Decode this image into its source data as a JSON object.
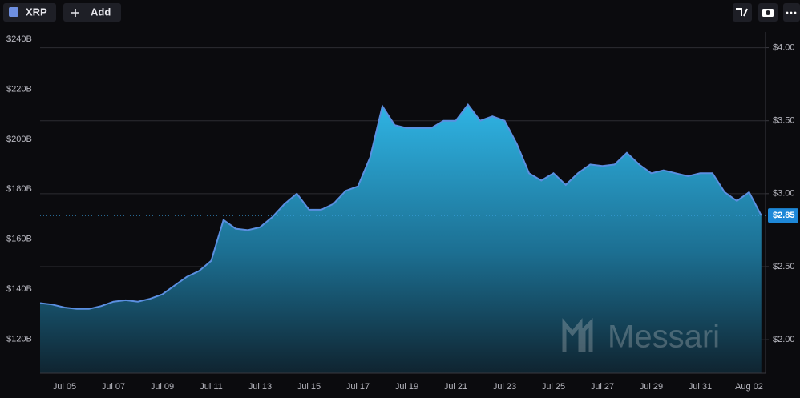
{
  "toolbar": {
    "add": "Add"
  },
  "watermark": "Messari",
  "chart_data": {
    "type": "area",
    "categories": [
      null,
      null,
      "Jul 05",
      null,
      null,
      null,
      "Jul 07",
      null,
      null,
      null,
      "Jul 09",
      null,
      null,
      null,
      "Jul 11",
      null,
      null,
      null,
      "Jul 13",
      null,
      null,
      null,
      "Jul 15",
      null,
      null,
      null,
      "Jul 17",
      null,
      null,
      null,
      "Jul 19",
      null,
      null,
      null,
      "Jul 21",
      null,
      null,
      null,
      "Jul 23",
      null,
      null,
      null,
      "Jul 25",
      null,
      null,
      null,
      "Jul 27",
      null,
      null,
      null,
      "Jul 29",
      null,
      null,
      null,
      "Jul 31",
      null,
      null,
      null,
      "Aug 02",
      null
    ],
    "series": [
      {
        "name": "XRP",
        "color": "#5b8fe0",
        "axis": "y2",
        "values": [
          2.25,
          2.24,
          2.22,
          2.21,
          2.21,
          2.23,
          2.26,
          2.27,
          2.26,
          2.28,
          2.31,
          2.37,
          2.43,
          2.47,
          2.54,
          2.82,
          2.76,
          2.75,
          2.77,
          2.84,
          2.93,
          3.0,
          2.89,
          2.89,
          2.93,
          3.02,
          3.05,
          3.25,
          3.6,
          3.47,
          3.45,
          3.45,
          3.45,
          3.5,
          3.5,
          3.61,
          3.5,
          3.53,
          3.5,
          3.34,
          3.14,
          3.09,
          3.14,
          3.06,
          3.14,
          3.2,
          3.19,
          3.2,
          3.28,
          3.2,
          3.14,
          3.16,
          3.14,
          3.12,
          3.14,
          3.14,
          3.01,
          2.95,
          3.01,
          2.85
        ]
      }
    ],
    "ylim": [
      106.4,
      241.3
    ],
    "yticks": [
      {
        "value": 120,
        "label": "$120B"
      },
      {
        "value": 140,
        "label": "$140B"
      },
      {
        "value": 160,
        "label": "$160B"
      },
      {
        "value": 180,
        "label": "$180B"
      },
      {
        "value": 200,
        "label": "$200B"
      },
      {
        "value": 220,
        "label": "$220B"
      },
      {
        "value": 240,
        "label": "$240B"
      }
    ],
    "y2lim": [
      1.77,
      4.08
    ],
    "y2ticks": [
      {
        "value": 2,
        "label": "$2.00"
      },
      {
        "value": 2.5,
        "label": "$2.50"
      },
      {
        "value": 3,
        "label": "$3.00"
      },
      {
        "value": 3.5,
        "label": "$3.50"
      },
      {
        "value": 4,
        "label": "$4.00"
      }
    ],
    "price_tag": {
      "value": 2.85,
      "label": "$2.85"
    },
    "grid": true
  }
}
